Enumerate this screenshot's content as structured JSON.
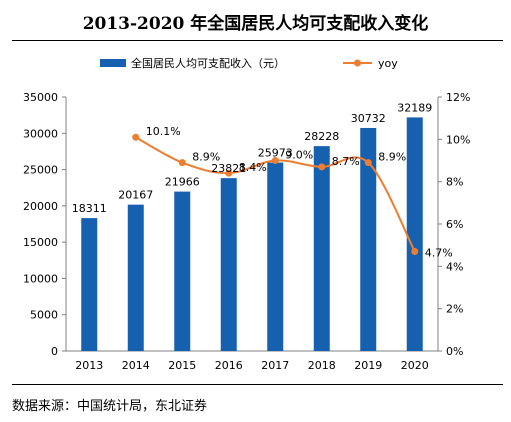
{
  "title": "2013-2020 年全国居民人均可支配收入变化",
  "source": "数据来源：中国统计局，东北证券",
  "colors": {
    "bar": "#1660b0",
    "line": "#ed7d31",
    "axis": "#808080",
    "text": "#000000"
  },
  "chart_data": {
    "type": "bar",
    "categories": [
      "2013",
      "2014",
      "2015",
      "2016",
      "2017",
      "2018",
      "2019",
      "2020"
    ],
    "series": [
      {
        "name": "全国居民人均可支配收入（元）",
        "type": "bar",
        "axis": "left",
        "values": [
          18311,
          20167,
          21966,
          23821,
          25973,
          28228,
          30732,
          32189
        ],
        "labels": [
          "18311",
          "20167",
          "21966",
          "23821",
          "25973",
          "28228",
          "30732",
          "32189"
        ]
      },
      {
        "name": "yoy",
        "type": "line",
        "axis": "right",
        "values": [
          null,
          10.1,
          8.9,
          8.4,
          9.0,
          8.7,
          8.9,
          4.7
        ],
        "labels": [
          "",
          "10.1%",
          "8.9%",
          "8.4%",
          "9.0%",
          "8.7%",
          "8.9%",
          "4.7%"
        ]
      }
    ],
    "ylim_left": [
      0,
      35000
    ],
    "yticks_left": [
      "0",
      "5000",
      "10000",
      "15000",
      "20000",
      "25000",
      "30000",
      "35000"
    ],
    "ylim_right": [
      0,
      12
    ],
    "yticks_right": [
      "0%",
      "2%",
      "4%",
      "6%",
      "8%",
      "10%",
      "12%"
    ],
    "legend_position": "top",
    "grid": false
  }
}
